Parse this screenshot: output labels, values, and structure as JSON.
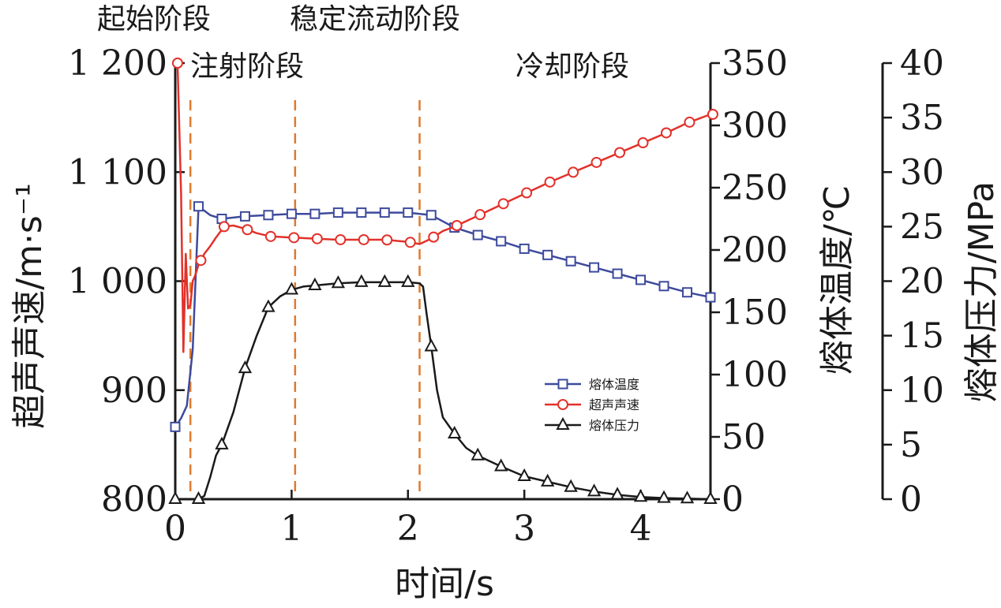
{
  "chart_data": {
    "type": "line",
    "xlabel": "时间/s",
    "ylabel_left": "超声声速/m·s⁻¹",
    "ylabel_right1": "熔体温度/℃",
    "ylabel_right2": "熔体压力/MPa",
    "xlim": [
      0,
      4.6
    ],
    "x_ticks": [
      "0",
      "1",
      "2",
      "3",
      "4"
    ],
    "ylim_left": [
      800,
      1200
    ],
    "y_ticks_left": [
      "800",
      "900",
      "1 000",
      "1 100",
      "1 200"
    ],
    "ylim_right1": [
      0,
      350
    ],
    "y_ticks_right1": [
      "0",
      "50",
      "100",
      "150",
      "200",
      "250",
      "300",
      "350"
    ],
    "ylim_right2": [
      0,
      40
    ],
    "y_ticks_right2": [
      "0",
      "5",
      "10",
      "15",
      "20",
      "25",
      "30",
      "35",
      "40"
    ],
    "phase_labels": [
      "起始阶段",
      "注射阶段",
      "稳定流动阶段",
      "冷却阶段"
    ],
    "phase_boundaries": [
      0.13,
      1.03,
      2.1
    ],
    "legend_position": "center-right",
    "series": [
      {
        "name": "熔体温度",
        "axis": "right1",
        "color": "#3d4a9c",
        "marker": "square",
        "markers_x": [
          0,
          0.2,
          0.4,
          0.6,
          0.8,
          1.0,
          1.2,
          1.4,
          1.6,
          1.8,
          2.0,
          2.2,
          2.4,
          2.6,
          2.8,
          3.0,
          3.2,
          3.4,
          3.6,
          3.8,
          4.0,
          4.2,
          4.4,
          4.6
        ],
        "x": [
          0,
          0.05,
          0.1,
          0.15,
          0.2,
          0.3,
          0.4,
          0.6,
          0.8,
          1.0,
          1.2,
          1.4,
          1.6,
          1.8,
          2.0,
          2.1,
          2.2,
          2.3,
          2.4,
          2.6,
          2.8,
          3.0,
          3.2,
          3.4,
          3.6,
          3.8,
          4.0,
          4.2,
          4.4,
          4.6
        ],
        "values": [
          58,
          65,
          75,
          120,
          235,
          228,
          225,
          227,
          228,
          229,
          229,
          230,
          230,
          230,
          230,
          229,
          228,
          223,
          218,
          212,
          207,
          201,
          196,
          191,
          186,
          181,
          176,
          171,
          166,
          162
        ]
      },
      {
        "name": "超声声速",
        "axis": "left",
        "color": "#e2312a",
        "marker": "circle",
        "markers_x": [
          0.02,
          0.22,
          0.42,
          0.62,
          0.82,
          1.02,
          1.22,
          1.42,
          1.62,
          1.82,
          2.02,
          2.22,
          2.42,
          2.62,
          2.82,
          3.02,
          3.22,
          3.42,
          3.62,
          3.82,
          4.02,
          4.22,
          4.42,
          4.62
        ],
        "x": [
          0.0,
          0.02,
          0.05,
          0.07,
          0.09,
          0.11,
          0.13,
          0.15,
          0.17,
          0.2,
          0.25,
          0.3,
          0.35,
          0.42,
          0.5,
          0.6,
          0.7,
          0.82,
          1.0,
          1.2,
          1.4,
          1.6,
          1.8,
          2.0,
          2.05,
          2.1,
          2.2,
          2.3,
          2.4,
          2.6,
          2.8,
          3.0,
          3.2,
          3.4,
          3.6,
          3.8,
          4.0,
          4.2,
          4.4,
          4.6
        ],
        "values": [
          1198,
          1200,
          1080,
          935,
          1025,
          975,
          978,
          1000,
          1005,
          1015,
          1025,
          1032,
          1040,
          1050,
          1051,
          1048,
          1044,
          1041,
          1040,
          1039,
          1038,
          1038,
          1038,
          1036,
          1035,
          1034,
          1039,
          1046,
          1050,
          1060,
          1070,
          1080,
          1090,
          1099,
          1108,
          1117,
          1126,
          1135,
          1145,
          1153
        ]
      },
      {
        "name": "熔体压力",
        "axis": "right2",
        "color": "#1a1a1a",
        "marker": "triangle",
        "markers_x": [
          0,
          0.2,
          0.4,
          0.6,
          0.8,
          1.0,
          1.2,
          1.4,
          1.6,
          1.8,
          2.0,
          2.2,
          2.4,
          2.6,
          2.8,
          3.0,
          3.2,
          3.4,
          3.6,
          3.8,
          4.0,
          4.2,
          4.4,
          4.6
        ],
        "x": [
          0,
          0.1,
          0.2,
          0.25,
          0.3,
          0.35,
          0.4,
          0.5,
          0.6,
          0.7,
          0.8,
          0.9,
          1.0,
          1.1,
          1.2,
          1.4,
          1.6,
          1.8,
          2.0,
          2.1,
          2.13,
          2.16,
          2.2,
          2.25,
          2.3,
          2.4,
          2.5,
          2.6,
          2.8,
          3.0,
          3.2,
          3.4,
          3.6,
          3.8,
          4.0,
          4.2,
          4.4,
          4.6
        ],
        "values": [
          0,
          0,
          0,
          0.3,
          2,
          4,
          5,
          8,
          12,
          15,
          17.6,
          18.6,
          19.2,
          19.5,
          19.6,
          19.8,
          19.9,
          19.9,
          19.9,
          19.8,
          19.5,
          17,
          14,
          10,
          7.5,
          6,
          4.7,
          4,
          3,
          2.1,
          1.6,
          1.1,
          0.7,
          0.4,
          0.2,
          0.1,
          0.05,
          0
        ]
      }
    ]
  }
}
